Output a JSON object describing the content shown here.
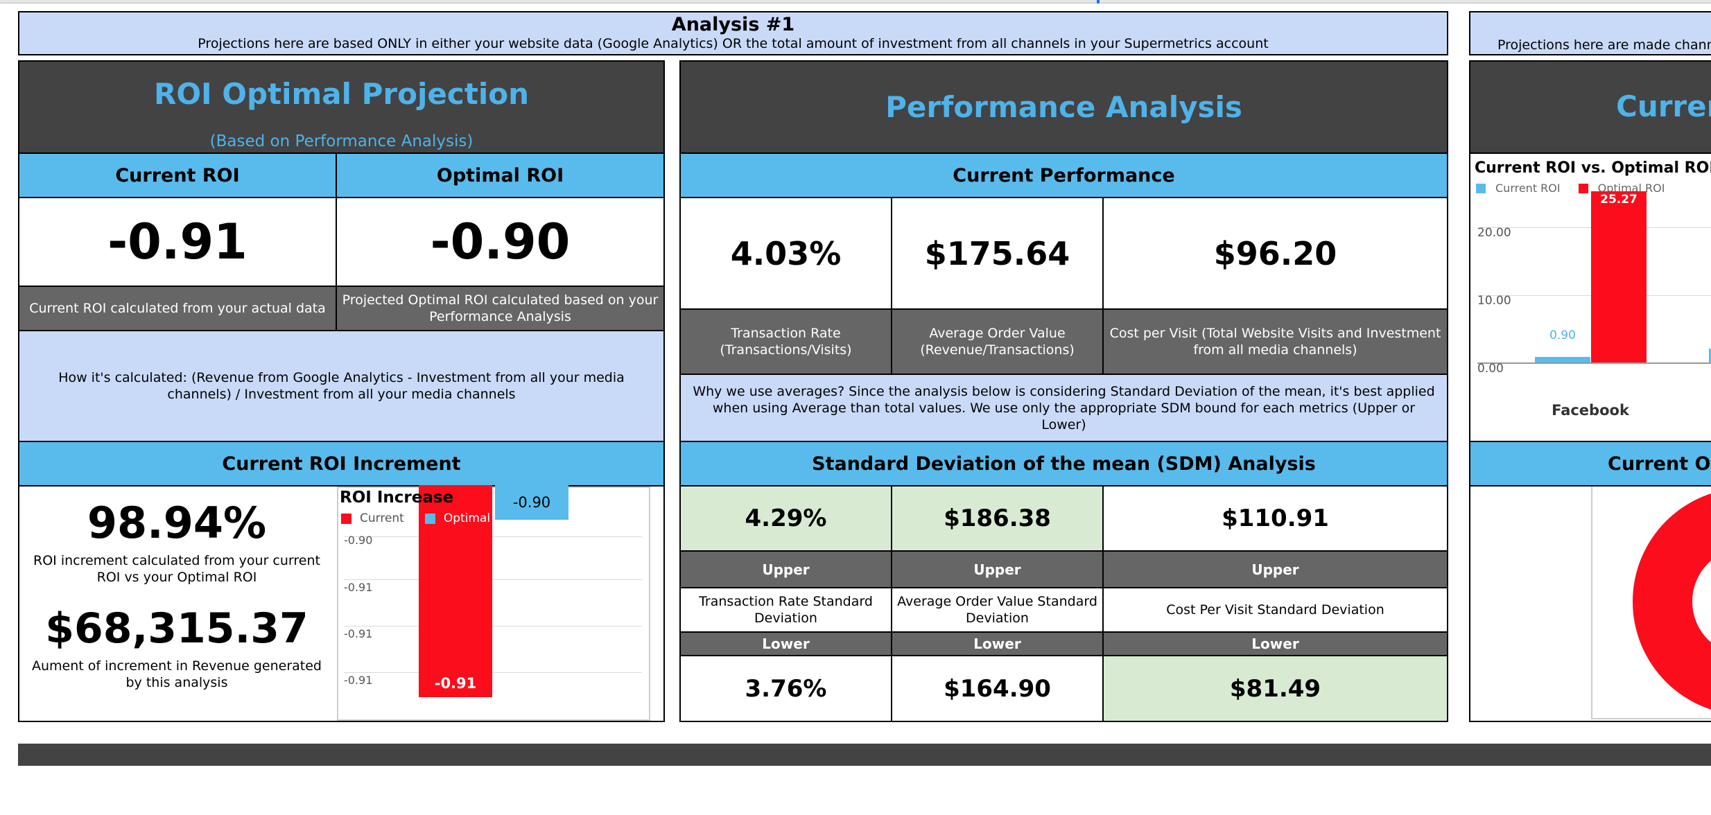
{
  "top_strip": {
    "label": "Analysis #1",
    "subtitle": "Projections here are based ONLY in either your website data (Google Analytics) OR the total amount of investment from all channels in your Supermetrics account"
  },
  "right_strip": {
    "subtitle": "Projections here are made channel"
  },
  "roi_panel": {
    "title": "ROI Optimal Projection",
    "subtitle": "(Based on Performance Analysis)",
    "current_header": "Current ROI",
    "optimal_header": "Optimal ROI",
    "current_value": "-0.91",
    "optimal_value": "-0.90",
    "current_desc": "Current ROI calculated from your actual data",
    "optimal_desc": "Projected Optimal ROI calculated based on your Performance Analysis",
    "how_calc": "How it's calculated: (Revenue from Google Analytics - Investment from all your media channels) / Investment from all your media channels"
  },
  "increment_panel": {
    "header": "Current ROI Increment",
    "pct_value": "98.94%",
    "pct_desc": "ROI increment calculated from your current ROI vs your Optimal ROI",
    "rev_value": "$68,315.37",
    "rev_desc": "Aument of increment in Revenue generated by this analysis"
  },
  "performance_panel": {
    "title": "Performance Analysis",
    "current_header": "Current Performance",
    "metrics": [
      {
        "value": "4.03%",
        "label": "Transaction Rate (Transactions/Visits)"
      },
      {
        "value": "$175.64",
        "label": "Average Order Value (Revenue/Transactions)"
      },
      {
        "value": "$96.20",
        "label": "Cost per Visit (Total Website Visits and Investment from all media channels)"
      }
    ],
    "why_avg": "Why we use averages? Since the analysis below is considering Standard Deviation of the mean, it's best applied when using Average than total values. We use only the appropriate SDM bound for each metrics (Upper or Lower)",
    "sdm_header": "Standard Deviation of the mean (SDM) Analysis",
    "sdm": [
      {
        "upper_value": "4.29%",
        "upper_label": "Upper",
        "name": "Transaction Rate Standard Deviation",
        "lower_label": "Lower",
        "lower_value": "3.76%",
        "upper_highlight": "#d9ead3",
        "lower_highlight": "#ffffff"
      },
      {
        "upper_value": "$186.38",
        "upper_label": "Upper",
        "name": "Average Order Value Standard Deviation",
        "lower_label": "Lower",
        "lower_value": "$164.90",
        "upper_highlight": "#d9ead3",
        "lower_highlight": "#ffffff"
      },
      {
        "upper_value": "$110.91",
        "upper_label": "Upper",
        "name": "Cost Per Visit Standard Deviation",
        "lower_label": "Lower",
        "lower_value": "$81.49",
        "upper_highlight": "#ffffff",
        "lower_highlight": "#d9ead3"
      }
    ]
  },
  "right_panel": {
    "title_partial": "Curren",
    "bottom_header_partial": "Current Opt"
  },
  "colors": {
    "current": "#fc0d1b",
    "optimal": "#59bbec",
    "dark": "#434343",
    "header_blue": "#59bbec",
    "pale_blue": "#c9daf8"
  },
  "chart_data": [
    {
      "type": "bar",
      "title": "ROI Increase",
      "legend": [
        "Current",
        "Optimal"
      ],
      "legend_position": "top-left",
      "series": [
        {
          "name": "Current",
          "values": [
            -0.91
          ]
        },
        {
          "name": "Optimal",
          "values": [
            -0.9
          ]
        }
      ],
      "data_labels": [
        "-0.91",
        "-0.90"
      ],
      "y_ticks": [
        "-0.90",
        "-0.91",
        "-0.91",
        "-0.91"
      ]
    },
    {
      "type": "bar",
      "title": "Current ROI vs. Optimal ROI",
      "legend": [
        "Current ROI",
        "Optimal ROI"
      ],
      "legend_position": "top-left",
      "categories": [
        "Facebook"
      ],
      "series": [
        {
          "name": "Current ROI",
          "values": [
            0.9
          ]
        },
        {
          "name": "Optimal ROI",
          "values": [
            25.27
          ]
        }
      ],
      "data_labels": [
        "0.90",
        "25.27"
      ],
      "y_ticks": [
        "20.00",
        "10.00",
        "0.00"
      ],
      "ylim": [
        0,
        26
      ]
    },
    {
      "type": "pie",
      "title": "",
      "series": [
        {
          "name": "Current",
          "share": 0.97
        },
        {
          "name": "Optimal",
          "share": 0.03
        }
      ]
    }
  ]
}
